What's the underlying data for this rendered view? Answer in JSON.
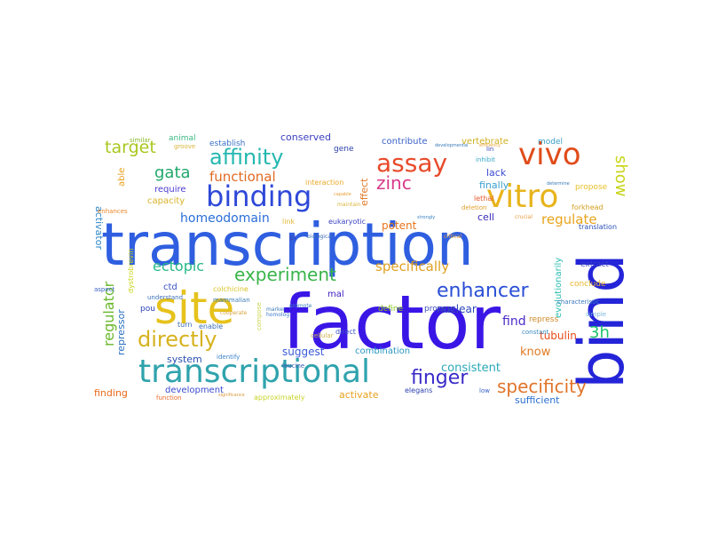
{
  "words": [
    {
      "text": "factor",
      "color": "#3a16e6"
    },
    {
      "text": "transcription",
      "color": "#2f5fe0"
    },
    {
      "text": "bind",
      "color": "#2424d8"
    },
    {
      "text": "site",
      "color": "#e6c21c"
    },
    {
      "text": "transcriptional",
      "color": "#2fa3ad"
    },
    {
      "text": "vitro",
      "color": "#e8b41c"
    },
    {
      "text": "binding",
      "color": "#2e48d8"
    },
    {
      "text": "vivo",
      "color": "#e04c1a"
    },
    {
      "text": "assay",
      "color": "#e84a2a"
    },
    {
      "text": "directly",
      "color": "#d6b21e"
    },
    {
      "text": "affinity",
      "color": "#24b8b0"
    },
    {
      "text": "experiment",
      "color": "#3ab44a"
    },
    {
      "text": "enhancer",
      "color": "#2a4fd6"
    },
    {
      "text": "finger",
      "color": "#3a2bc8"
    },
    {
      "text": "specificity",
      "color": "#e0742a"
    },
    {
      "text": "zinc",
      "color": "#d93a8a"
    },
    {
      "text": "target",
      "color": "#a8c81e"
    },
    {
      "text": "show",
      "color": "#c8d418"
    },
    {
      "text": "gata",
      "color": "#20a86a"
    },
    {
      "text": "functional",
      "color": "#e06a22"
    },
    {
      "text": "homeodomain",
      "color": "#2a6ed8"
    },
    {
      "text": "regulate",
      "color": "#e8a41c"
    },
    {
      "text": "3h",
      "color": "#20c46a"
    },
    {
      "text": "specifically",
      "color": "#e0a020"
    },
    {
      "text": "ectopic",
      "color": "#28b888"
    },
    {
      "text": "regulator",
      "color": "#6ab82a"
    },
    {
      "text": "conserved",
      "color": "#3a3fc0"
    },
    {
      "text": "potent",
      "color": "#e8741c"
    },
    {
      "text": "nuclear",
      "color": "#2b48b8"
    },
    {
      "text": "consistent",
      "color": "#2aa8b8"
    },
    {
      "text": "find",
      "color": "#4a2ac8"
    },
    {
      "text": "know",
      "color": "#e07a22"
    },
    {
      "text": "tubulin",
      "color": "#e84a1a"
    },
    {
      "text": "suggest",
      "color": "#3a5ad8"
    },
    {
      "text": "system",
      "color": "#2850b0"
    },
    {
      "text": "activate",
      "color": "#e8a01c"
    },
    {
      "text": "finding",
      "color": "#e86a1a"
    },
    {
      "text": "sufficient",
      "color": "#2a6fd0"
    },
    {
      "text": "combination",
      "color": "#2a96c0"
    },
    {
      "text": "development",
      "color": "#3a4ad0"
    },
    {
      "text": "activator",
      "color": "#2a86c8"
    },
    {
      "text": "contribute",
      "color": "#3a62c8"
    },
    {
      "text": "vertebrate",
      "color": "#d0b022"
    },
    {
      "text": "require",
      "color": "#4a3bd0"
    },
    {
      "text": "capacity",
      "color": "#d8b428"
    },
    {
      "text": "cell",
      "color": "#3a2bb8"
    },
    {
      "text": "effect",
      "color": "#e07a2a"
    },
    {
      "text": "lack",
      "color": "#3a4ad0"
    },
    {
      "text": "finally",
      "color": "#3aa0d0"
    },
    {
      "text": "repressor",
      "color": "#2a70c0"
    },
    {
      "text": "evolutionarily",
      "color": "#2abcb0"
    },
    {
      "text": "dystrobrevin",
      "color": "#c8d418"
    },
    {
      "text": "colchicine",
      "color": "#d8c428"
    },
    {
      "text": "able",
      "color": "#e8a01c"
    },
    {
      "text": "establish",
      "color": "#3a70c8"
    },
    {
      "text": "animal",
      "color": "#3ab880"
    },
    {
      "text": "gene",
      "color": "#2a3fa8"
    },
    {
      "text": "model",
      "color": "#3a9ec0"
    },
    {
      "text": "interaction",
      "color": "#e8a828"
    },
    {
      "text": "eukaryotic",
      "color": "#3a44c0"
    },
    {
      "text": "link",
      "color": "#e0b838"
    },
    {
      "text": "pi",
      "color": "#3a3fb0"
    },
    {
      "text": "ctd",
      "color": "#3a50c8"
    },
    {
      "text": "pou",
      "color": "#2a3fb8"
    },
    {
      "text": "mal",
      "color": "#3a1ac0"
    },
    {
      "text": "process",
      "color": "#3a4ab8"
    },
    {
      "text": "define",
      "color": "#8ac820"
    },
    {
      "text": "repress",
      "color": "#d08a2a"
    },
    {
      "text": "conclude",
      "color": "#e8b42a"
    },
    {
      "text": "extract",
      "color": "#3a40c0"
    },
    {
      "text": "propose",
      "color": "#e8c02a"
    },
    {
      "text": "forkhead",
      "color": "#d4a020"
    },
    {
      "text": "translation",
      "color": "#2a4fb8"
    },
    {
      "text": "lethal",
      "color": "#e85a2a"
    },
    {
      "text": "deletion",
      "color": "#e0a02a"
    },
    {
      "text": "enhances",
      "color": "#e8882a"
    },
    {
      "text": "similar",
      "color": "#8ab82a"
    },
    {
      "text": "groove",
      "color": "#d8b43a"
    },
    {
      "text": "inhibit",
      "color": "#3aa8c8"
    },
    {
      "text": "lin",
      "color": "#3a4ab8"
    },
    {
      "text": "elegans",
      "color": "#2a3fb0"
    },
    {
      "text": "low",
      "color": "#3a60c8"
    },
    {
      "text": "approximately",
      "color": "#c8d42a"
    },
    {
      "text": "direct",
      "color": "#3a50c8"
    },
    {
      "text": "cellular",
      "color": "#d0b44a"
    },
    {
      "text": "enable",
      "color": "#3a70b8"
    },
    {
      "text": "turn",
      "color": "#3a6ab0"
    },
    {
      "text": "function",
      "color": "#e86a2a"
    },
    {
      "text": "understand",
      "color": "#3a70b8"
    },
    {
      "text": "identify",
      "color": "#3a82c8"
    },
    {
      "text": "compose",
      "color": "#c8d44a"
    },
    {
      "text": "constant",
      "color": "#3a8ac0"
    },
    {
      "text": "characteristic",
      "color": "#3a7ac0"
    },
    {
      "text": "simple",
      "color": "#7ab8e0"
    },
    {
      "text": "leucine",
      "color": "#3a5ab8"
    },
    {
      "text": "mammalian",
      "color": "#3a7ab8"
    },
    {
      "text": "aspect",
      "color": "#3a60c8"
    },
    {
      "text": "homolog",
      "color": "#3a7ac8"
    },
    {
      "text": "marker",
      "color": "#3a7ab8"
    },
    {
      "text": "promote",
      "color": "#3a80c0"
    },
    {
      "text": "maintain",
      "color": "#d8b43a"
    },
    {
      "text": "cooperate",
      "color": "#d8a43a"
    },
    {
      "text": "biological",
      "color": "#3a6ab8"
    },
    {
      "text": "critical",
      "color": "#e8a03a"
    },
    {
      "text": "crucial",
      "color": "#e89a3a"
    },
    {
      "text": "determine",
      "color": "#3a7ab8"
    },
    {
      "text": "efficiency",
      "color": "#e8a43a"
    },
    {
      "text": "developmental",
      "color": "#3a7ab8"
    },
    {
      "text": "capable",
      "color": "#e8a03a"
    },
    {
      "text": "strongly",
      "color": "#3a80c0"
    },
    {
      "text": "significance",
      "color": "#d89a3a"
    }
  ]
}
